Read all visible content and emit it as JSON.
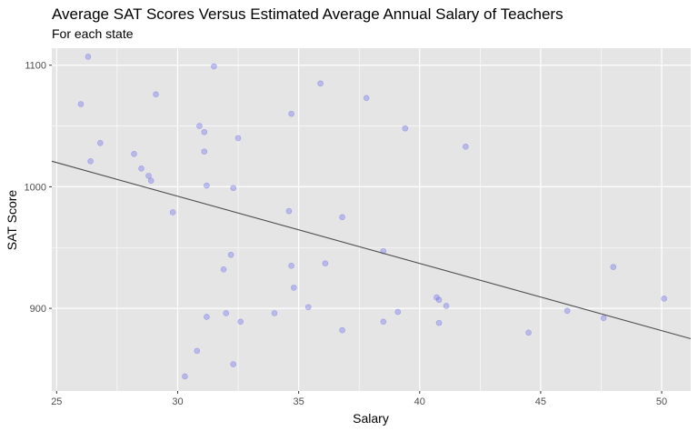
{
  "chart_data": {
    "type": "scatter",
    "title": "Average SAT Scores Versus Estimated Average Annual Salary of Teachers",
    "subtitle": "For each state",
    "xlabel": "Salary",
    "ylabel": "SAT Score",
    "xlim": [
      24.8,
      51.2
    ],
    "ylim": [
      832,
      1114
    ],
    "x_ticks": [
      25,
      30,
      35,
      40,
      45,
      50
    ],
    "y_ticks": [
      900,
      1000,
      1100
    ],
    "grid": true,
    "point_color": "#6666ee",
    "line_color": "#4d4d4d",
    "panel_background": "#e5e5e5",
    "trend_line": {
      "x": [
        24.8,
        51.2
      ],
      "y": [
        1021,
        875
      ]
    },
    "points": [
      {
        "x": 26.3,
        "y": 1107
      },
      {
        "x": 26.0,
        "y": 1068
      },
      {
        "x": 26.4,
        "y": 1021
      },
      {
        "x": 26.8,
        "y": 1036
      },
      {
        "x": 28.2,
        "y": 1027
      },
      {
        "x": 28.5,
        "y": 1015
      },
      {
        "x": 28.8,
        "y": 1009
      },
      {
        "x": 28.9,
        "y": 1005
      },
      {
        "x": 29.1,
        "y": 1076
      },
      {
        "x": 29.8,
        "y": 979
      },
      {
        "x": 30.3,
        "y": 844
      },
      {
        "x": 30.8,
        "y": 865
      },
      {
        "x": 30.9,
        "y": 1050
      },
      {
        "x": 31.1,
        "y": 1045
      },
      {
        "x": 31.1,
        "y": 1029
      },
      {
        "x": 31.2,
        "y": 1001
      },
      {
        "x": 31.2,
        "y": 893
      },
      {
        "x": 31.5,
        "y": 1099
      },
      {
        "x": 31.9,
        "y": 932
      },
      {
        "x": 32.0,
        "y": 896
      },
      {
        "x": 32.2,
        "y": 944
      },
      {
        "x": 32.3,
        "y": 999
      },
      {
        "x": 32.3,
        "y": 854
      },
      {
        "x": 32.5,
        "y": 1040
      },
      {
        "x": 32.6,
        "y": 889
      },
      {
        "x": 34.0,
        "y": 896
      },
      {
        "x": 34.6,
        "y": 980
      },
      {
        "x": 34.7,
        "y": 1060
      },
      {
        "x": 34.7,
        "y": 935
      },
      {
        "x": 34.8,
        "y": 917
      },
      {
        "x": 35.4,
        "y": 901
      },
      {
        "x": 35.9,
        "y": 1085
      },
      {
        "x": 36.1,
        "y": 937
      },
      {
        "x": 36.8,
        "y": 975
      },
      {
        "x": 36.8,
        "y": 882
      },
      {
        "x": 37.8,
        "y": 1073
      },
      {
        "x": 38.5,
        "y": 947
      },
      {
        "x": 38.5,
        "y": 889
      },
      {
        "x": 39.1,
        "y": 897
      },
      {
        "x": 39.4,
        "y": 1048
      },
      {
        "x": 40.7,
        "y": 909
      },
      {
        "x": 40.8,
        "y": 907
      },
      {
        "x": 40.8,
        "y": 888
      },
      {
        "x": 41.1,
        "y": 902
      },
      {
        "x": 41.9,
        "y": 1033
      },
      {
        "x": 44.5,
        "y": 880
      },
      {
        "x": 46.1,
        "y": 898
      },
      {
        "x": 47.6,
        "y": 892
      },
      {
        "x": 48.0,
        "y": 934
      },
      {
        "x": 50.1,
        "y": 908
      }
    ]
  }
}
